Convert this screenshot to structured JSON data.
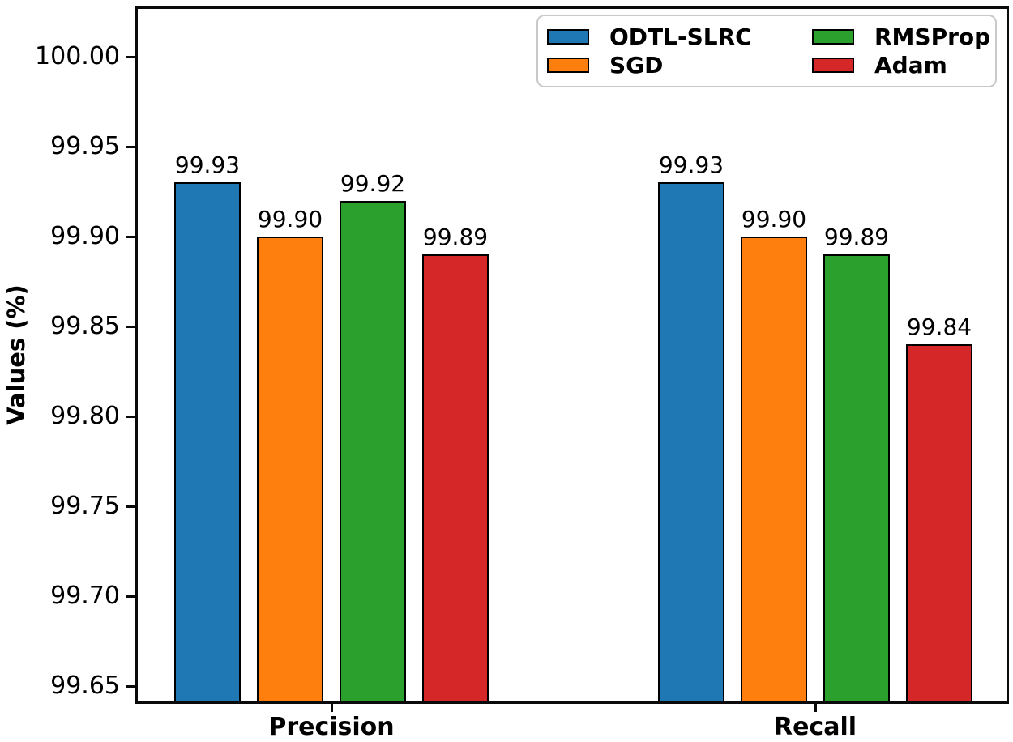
{
  "figure": {
    "background_color": "#ffffff",
    "text_color": "#000000",
    "axis_color": "#0a0a0a"
  },
  "chart_data": {
    "type": "bar",
    "title": "",
    "categories": [
      "Precision",
      "Recall"
    ],
    "series": [
      {
        "name": "ODTL-SLRC",
        "color": "#1f77b4",
        "values": [
          99.93,
          99.93
        ],
        "labels": [
          "99.93",
          "99.93"
        ]
      },
      {
        "name": "SGD",
        "color": "#ff7f0e",
        "values": [
          99.9,
          99.9
        ],
        "labels": [
          "99.90",
          "99.90"
        ]
      },
      {
        "name": "RMSProp",
        "color": "#2ca02c",
        "values": [
          99.92,
          99.89
        ],
        "labels": [
          "99.92",
          "99.89"
        ]
      },
      {
        "name": "Adam",
        "color": "#d62728",
        "values": [
          99.89,
          99.84
        ],
        "labels": [
          "99.89",
          "99.84"
        ]
      }
    ],
    "xlabel": "",
    "ylabel": "Values (%)",
    "ylim": [
      99.64,
      100.028
    ],
    "yticks": [
      100.0,
      99.95,
      99.9,
      99.85,
      99.8,
      99.75,
      99.7,
      99.65
    ],
    "ytick_labels": [
      "100.00",
      "99.95",
      "99.90",
      "99.85",
      "99.80",
      "99.75",
      "99.70",
      "99.65"
    ],
    "grid": false,
    "bar_edge_color": "#000000",
    "legend": {
      "position": "upper right",
      "ncol": 2
    }
  }
}
